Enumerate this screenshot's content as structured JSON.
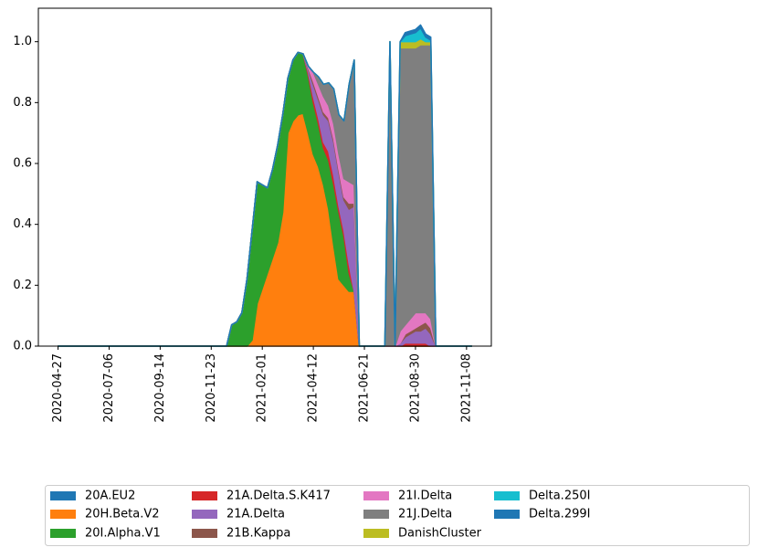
{
  "chart_data": {
    "type": "stacked-area",
    "x": [
      "2020-04-27",
      "2020-05-04",
      "2020-05-11",
      "2020-05-18",
      "2020-05-25",
      "2020-06-01",
      "2020-06-08",
      "2020-06-15",
      "2020-06-22",
      "2020-06-29",
      "2020-07-06",
      "2020-07-13",
      "2020-07-20",
      "2020-07-27",
      "2020-08-03",
      "2020-08-10",
      "2020-08-17",
      "2020-08-24",
      "2020-08-31",
      "2020-09-07",
      "2020-09-14",
      "2020-09-21",
      "2020-09-28",
      "2020-10-05",
      "2020-10-12",
      "2020-10-19",
      "2020-10-26",
      "2020-11-02",
      "2020-11-09",
      "2020-11-16",
      "2020-11-23",
      "2020-11-30",
      "2020-12-07",
      "2020-12-14",
      "2020-12-21",
      "2020-12-28",
      "2021-01-04",
      "2021-01-11",
      "2021-01-18",
      "2021-01-25",
      "2021-02-01",
      "2021-02-08",
      "2021-02-15",
      "2021-02-22",
      "2021-03-01",
      "2021-03-08",
      "2021-03-15",
      "2021-03-22",
      "2021-03-29",
      "2021-04-05",
      "2021-04-12",
      "2021-04-19",
      "2021-04-26",
      "2021-05-03",
      "2021-05-10",
      "2021-05-17",
      "2021-05-24",
      "2021-05-31",
      "2021-06-07",
      "2021-06-14",
      "2021-06-21",
      "2021-06-28",
      "2021-07-05",
      "2021-07-12",
      "2021-07-19",
      "2021-07-26",
      "2021-08-02",
      "2021-08-09",
      "2021-08-16",
      "2021-08-23",
      "2021-08-30",
      "2021-09-06",
      "2021-09-13",
      "2021-09-20",
      "2021-09-27",
      "2021-10-04",
      "2021-10-11",
      "2021-10-18",
      "2021-10-25",
      "2021-11-01",
      "2021-11-08",
      "2021-11-15"
    ],
    "series": [
      {
        "name": "20A.EU2",
        "color": "#1f77b4",
        "values": [
          0,
          0,
          0,
          0,
          0,
          0,
          0,
          0,
          0,
          0,
          0,
          0,
          0,
          0,
          0,
          0,
          0,
          0,
          0,
          0,
          0,
          0,
          0,
          0,
          0,
          0,
          0,
          0,
          0,
          0,
          0,
          0,
          0,
          0,
          0,
          0,
          0,
          0,
          0,
          0,
          0,
          0,
          0,
          0,
          0,
          0,
          0,
          0,
          0,
          0,
          0,
          0,
          0,
          0,
          0,
          0,
          0,
          0,
          0,
          0,
          0,
          0,
          0,
          0,
          0,
          0,
          0,
          0,
          0,
          0,
          0,
          0,
          0,
          0,
          0,
          0,
          0,
          0,
          0,
          0,
          0,
          0
        ]
      },
      {
        "name": "20H.Beta.V2",
        "color": "#ff7f0e",
        "values": [
          0,
          0,
          0,
          0,
          0,
          0,
          0,
          0,
          0,
          0,
          0,
          0,
          0,
          0,
          0,
          0,
          0,
          0,
          0,
          0,
          0,
          0,
          0,
          0,
          0,
          0,
          0,
          0,
          0,
          0,
          0,
          0,
          0,
          0,
          0,
          0,
          0,
          0,
          0.02,
          0.14,
          0.19,
          0.24,
          0.29,
          0.34,
          0.44,
          0.7,
          0.74,
          0.76,
          0.765,
          0.7,
          0.63,
          0.59,
          0.53,
          0.45,
          0.33,
          0.22,
          0.2,
          0.18,
          0.18,
          0,
          0,
          0,
          0,
          0,
          0,
          0,
          0,
          0,
          0,
          0,
          0,
          0,
          0,
          0,
          0,
          0,
          0,
          0,
          0,
          0,
          0,
          0
        ]
      },
      {
        "name": "20I.Alpha.V1",
        "color": "#2ca02c",
        "values": [
          0,
          0,
          0,
          0,
          0,
          0,
          0,
          0,
          0,
          0,
          0,
          0,
          0,
          0,
          0,
          0,
          0,
          0,
          0,
          0,
          0,
          0,
          0,
          0,
          0,
          0,
          0,
          0,
          0,
          0,
          0,
          0,
          0,
          0,
          0.07,
          0.08,
          0.11,
          0.22,
          0.36,
          0.4,
          0.34,
          0.28,
          0.29,
          0.32,
          0.32,
          0.18,
          0.2,
          0.205,
          0.195,
          0.19,
          0.17,
          0.14,
          0.12,
          0.16,
          0.2,
          0.22,
          0.16,
          0.06,
          0,
          0,
          0,
          0,
          0,
          0,
          0,
          0,
          0,
          0,
          0,
          0,
          0,
          0,
          0,
          0,
          0,
          0,
          0,
          0,
          0,
          0,
          0,
          0
        ]
      },
      {
        "name": "21A.Delta.S.K417",
        "color": "#d62728",
        "values": [
          0,
          0,
          0,
          0,
          0,
          0,
          0,
          0,
          0,
          0,
          0,
          0,
          0,
          0,
          0,
          0,
          0,
          0,
          0,
          0,
          0,
          0,
          0,
          0,
          0,
          0,
          0,
          0,
          0,
          0,
          0,
          0,
          0,
          0,
          0,
          0,
          0,
          0,
          0,
          0,
          0,
          0,
          0,
          0,
          0,
          0,
          0,
          0,
          0,
          0.01,
          0.02,
          0.02,
          0.02,
          0.03,
          0.03,
          0.02,
          0.02,
          0.03,
          0,
          0,
          0,
          0,
          0,
          0,
          0,
          0,
          0,
          0,
          0.01,
          0.01,
          0.01,
          0.01,
          0.01,
          0,
          0,
          0,
          0,
          0,
          0,
          0,
          0,
          0
        ]
      },
      {
        "name": "21A.Delta",
        "color": "#9467bd",
        "values": [
          0,
          0,
          0,
          0,
          0,
          0,
          0,
          0,
          0,
          0,
          0,
          0,
          0,
          0,
          0,
          0,
          0,
          0,
          0,
          0,
          0,
          0,
          0,
          0,
          0,
          0,
          0,
          0,
          0,
          0,
          0,
          0,
          0,
          0,
          0,
          0,
          0,
          0,
          0,
          0,
          0,
          0,
          0,
          0,
          0,
          0,
          0,
          0,
          0,
          0.01,
          0.04,
          0.06,
          0.09,
          0.1,
          0.11,
          0.11,
          0.1,
          0.18,
          0.28,
          0,
          0,
          0,
          0,
          0,
          0,
          0,
          0,
          0.01,
          0.02,
          0.03,
          0.04,
          0.04,
          0.05,
          0.04,
          0,
          0,
          0,
          0,
          0,
          0,
          0,
          0
        ]
      },
      {
        "name": "21B.Kappa",
        "color": "#8c564b",
        "values": [
          0,
          0,
          0,
          0,
          0,
          0,
          0,
          0,
          0,
          0,
          0,
          0,
          0,
          0,
          0,
          0,
          0,
          0,
          0,
          0,
          0,
          0,
          0,
          0,
          0,
          0,
          0,
          0,
          0,
          0,
          0,
          0,
          0,
          0,
          0,
          0,
          0,
          0,
          0,
          0,
          0,
          0,
          0,
          0,
          0,
          0,
          0,
          0,
          0,
          0.005,
          0.01,
          0.01,
          0.01,
          0.01,
          0.01,
          0.01,
          0.01,
          0.02,
          0.01,
          0,
          0,
          0,
          0,
          0,
          0,
          0,
          0,
          0,
          0.01,
          0.01,
          0.01,
          0.02,
          0.02,
          0.02,
          0,
          0,
          0,
          0,
          0,
          0,
          0,
          0
        ]
      },
      {
        "name": "21I.Delta",
        "color": "#e377c2",
        "values": [
          0,
          0,
          0,
          0,
          0,
          0,
          0,
          0,
          0,
          0,
          0,
          0,
          0,
          0,
          0,
          0,
          0,
          0,
          0,
          0,
          0,
          0,
          0,
          0,
          0,
          0,
          0,
          0,
          0,
          0,
          0,
          0,
          0,
          0,
          0,
          0,
          0,
          0,
          0,
          0,
          0,
          0,
          0,
          0,
          0,
          0,
          0,
          0,
          0,
          0.005,
          0.03,
          0.04,
          0.05,
          0.04,
          0.05,
          0.05,
          0.06,
          0.07,
          0.06,
          0,
          0,
          0,
          0,
          0,
          0,
          0,
          0,
          0.04,
          0.03,
          0.04,
          0.05,
          0.04,
          0.03,
          0.03,
          0,
          0,
          0,
          0,
          0,
          0,
          0,
          0
        ]
      },
      {
        "name": "21J.Delta",
        "color": "#7f7f7f",
        "values": [
          0,
          0,
          0,
          0,
          0,
          0,
          0,
          0,
          0,
          0,
          0,
          0,
          0,
          0,
          0,
          0,
          0,
          0,
          0,
          0,
          0,
          0,
          0,
          0,
          0,
          0,
          0,
          0,
          0,
          0,
          0,
          0,
          0,
          0,
          0,
          0,
          0,
          0,
          0,
          0,
          0,
          0,
          0,
          0,
          0,
          0,
          0,
          0,
          0,
          0,
          0,
          0.025,
          0.04,
          0.075,
          0.115,
          0.13,
          0.19,
          0.32,
          0.41,
          0,
          0,
          0,
          0,
          0,
          0,
          1.0,
          0,
          0.93,
          0.91,
          0.89,
          0.87,
          0.88,
          0.88,
          0.9,
          0,
          0,
          0,
          0,
          0,
          0,
          0,
          0
        ]
      },
      {
        "name": "DanishCluster",
        "color": "#bcbd22",
        "values": [
          0,
          0,
          0,
          0,
          0,
          0,
          0,
          0,
          0,
          0,
          0,
          0,
          0,
          0,
          0,
          0,
          0,
          0,
          0,
          0,
          0,
          0,
          0,
          0,
          0,
          0,
          0,
          0,
          0,
          0,
          0,
          0,
          0,
          0,
          0,
          0,
          0,
          0,
          0,
          0,
          0,
          0,
          0,
          0,
          0,
          0,
          0,
          0,
          0,
          0,
          0,
          0,
          0,
          0,
          0,
          0,
          0,
          0,
          0,
          0,
          0,
          0,
          0,
          0,
          0,
          0,
          0,
          0.02,
          0.02,
          0.02,
          0.02,
          0.02,
          0.01,
          0.01,
          0,
          0,
          0,
          0,
          0,
          0,
          0,
          0
        ]
      },
      {
        "name": "Delta.250I",
        "color": "#17becf",
        "values": [
          0,
          0,
          0,
          0,
          0,
          0,
          0,
          0,
          0,
          0,
          0,
          0,
          0,
          0,
          0,
          0,
          0,
          0,
          0,
          0,
          0,
          0,
          0,
          0,
          0,
          0,
          0,
          0,
          0,
          0,
          0,
          0,
          0,
          0,
          0,
          0,
          0,
          0,
          0,
          0,
          0,
          0,
          0,
          0,
          0,
          0,
          0,
          0,
          0,
          0,
          0,
          0,
          0,
          0,
          0,
          0,
          0,
          0,
          0,
          0,
          0,
          0,
          0,
          0,
          0,
          0,
          0,
          0,
          0.02,
          0.025,
          0.03,
          0.035,
          0.015,
          0.005,
          0,
          0,
          0,
          0,
          0,
          0,
          0,
          0
        ]
      },
      {
        "name": "Delta.299I",
        "color": "#1f77b4",
        "values": [
          0,
          0,
          0,
          0,
          0,
          0,
          0,
          0,
          0,
          0,
          0,
          0,
          0,
          0,
          0,
          0,
          0,
          0,
          0,
          0,
          0,
          0,
          0,
          0,
          0,
          0,
          0,
          0,
          0,
          0,
          0,
          0,
          0,
          0,
          0,
          0,
          0,
          0,
          0,
          0,
          0,
          0,
          0,
          0,
          0,
          0,
          0,
          0,
          0,
          0,
          0,
          0,
          0,
          0,
          0,
          0,
          0,
          0,
          0,
          0,
          0,
          0,
          0,
          0,
          0,
          0,
          0,
          0,
          0.01,
          0.01,
          0.01,
          0.01,
          0.01,
          0.01,
          0,
          0,
          0,
          0,
          0,
          0,
          0,
          0
        ]
      }
    ],
    "xlim": [
      "2020-03-31",
      "2021-12-12"
    ],
    "xticks": [
      "2020-04-27",
      "2020-07-06",
      "2020-09-14",
      "2020-11-23",
      "2021-02-01",
      "2021-04-12",
      "2021-06-21",
      "2021-08-30",
      "2021-11-08"
    ],
    "ylim": [
      0,
      1.11
    ],
    "yticks": [
      {
        "value": 0,
        "label": "0.0"
      },
      {
        "value": 0.2,
        "label": "0.2"
      },
      {
        "value": 0.4,
        "label": "0.4"
      },
      {
        "value": 0.6,
        "label": "0.6"
      },
      {
        "value": 0.8,
        "label": "0.8"
      },
      {
        "value": 1.0,
        "label": "1.0"
      }
    ]
  }
}
